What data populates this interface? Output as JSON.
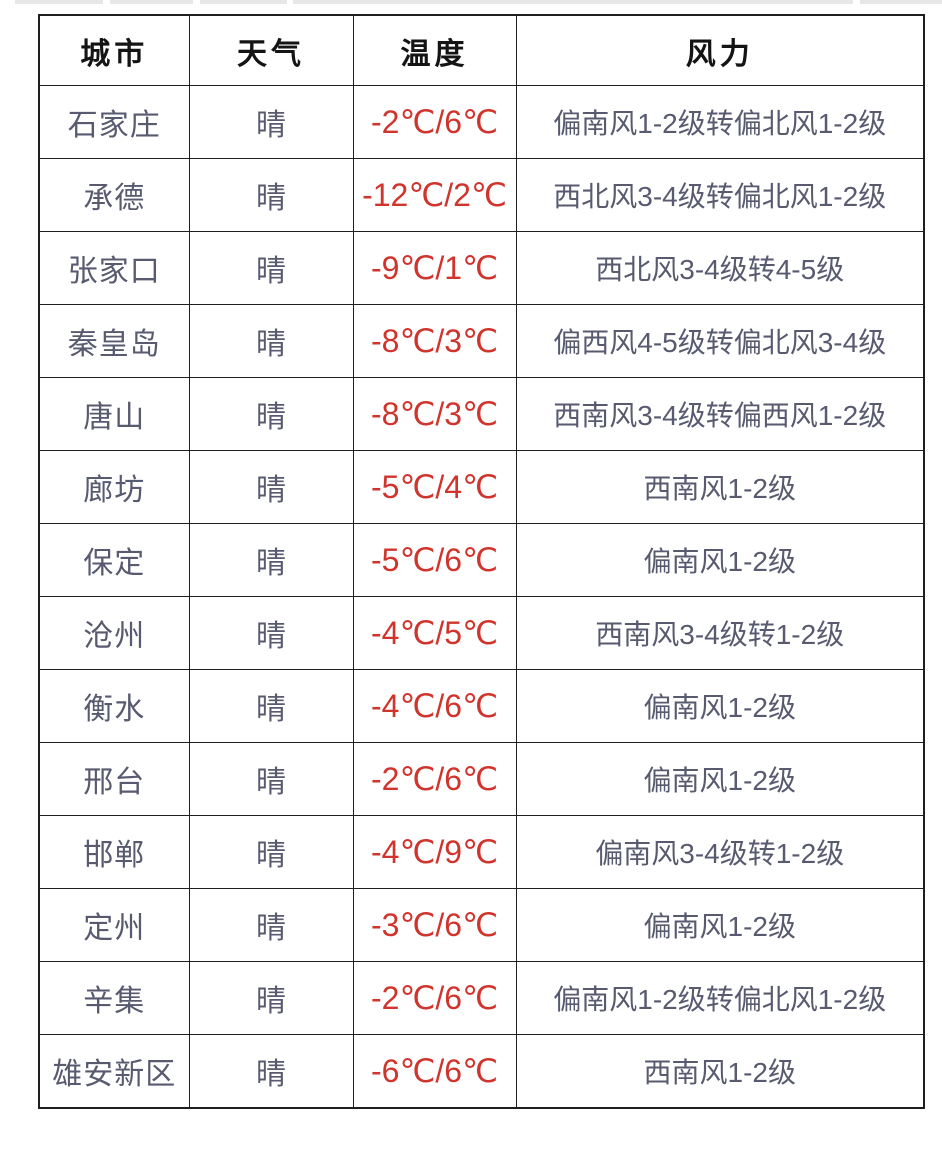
{
  "colors": {
    "border": "#1f1f1f",
    "header_text": "#141414",
    "body_text": "#585a70",
    "temperature_text": "#d0342c"
  },
  "chart_data": {
    "type": "table",
    "columns": [
      {
        "key": "city",
        "label": "城市"
      },
      {
        "key": "weather",
        "label": "天气"
      },
      {
        "key": "temp",
        "label": "温度"
      },
      {
        "key": "wind",
        "label": "风力"
      }
    ],
    "rows": [
      {
        "city": "石家庄",
        "weather": "晴",
        "temp": "-2℃/6℃",
        "wind": "偏南风1-2级转偏北风1-2级"
      },
      {
        "city": "承德",
        "weather": "晴",
        "temp": "-12℃/2℃",
        "wind": "西北风3-4级转偏北风1-2级"
      },
      {
        "city": "张家口",
        "weather": "晴",
        "temp": "-9℃/1℃",
        "wind": "西北风3-4级转4-5级"
      },
      {
        "city": "秦皇岛",
        "weather": "晴",
        "temp": "-8℃/3℃",
        "wind": "偏西风4-5级转偏北风3-4级"
      },
      {
        "city": "唐山",
        "weather": "晴",
        "temp": "-8℃/3℃",
        "wind": "西南风3-4级转偏西风1-2级"
      },
      {
        "city": "廊坊",
        "weather": "晴",
        "temp": "-5℃/4℃",
        "wind": "西南风1-2级"
      },
      {
        "city": "保定",
        "weather": "晴",
        "temp": "-5℃/6℃",
        "wind": "偏南风1-2级"
      },
      {
        "city": "沧州",
        "weather": "晴",
        "temp": "-4℃/5℃",
        "wind": "西南风3-4级转1-2级"
      },
      {
        "city": "衡水",
        "weather": "晴",
        "temp": "-4℃/6℃",
        "wind": "偏南风1-2级"
      },
      {
        "city": "邢台",
        "weather": "晴",
        "temp": "-2℃/6℃",
        "wind": "偏南风1-2级"
      },
      {
        "city": "邯郸",
        "weather": "晴",
        "temp": "-4℃/9℃",
        "wind": "偏南风3-4级转1-2级"
      },
      {
        "city": "定州",
        "weather": "晴",
        "temp": "-3℃/6℃",
        "wind": "偏南风1-2级"
      },
      {
        "city": "辛集",
        "weather": "晴",
        "temp": "-2℃/6℃",
        "wind": "偏南风1-2级转偏北风1-2级"
      },
      {
        "city": "雄安新区",
        "weather": "晴",
        "temp": "-6℃/6℃",
        "wind": "西南风1-2级"
      }
    ]
  }
}
